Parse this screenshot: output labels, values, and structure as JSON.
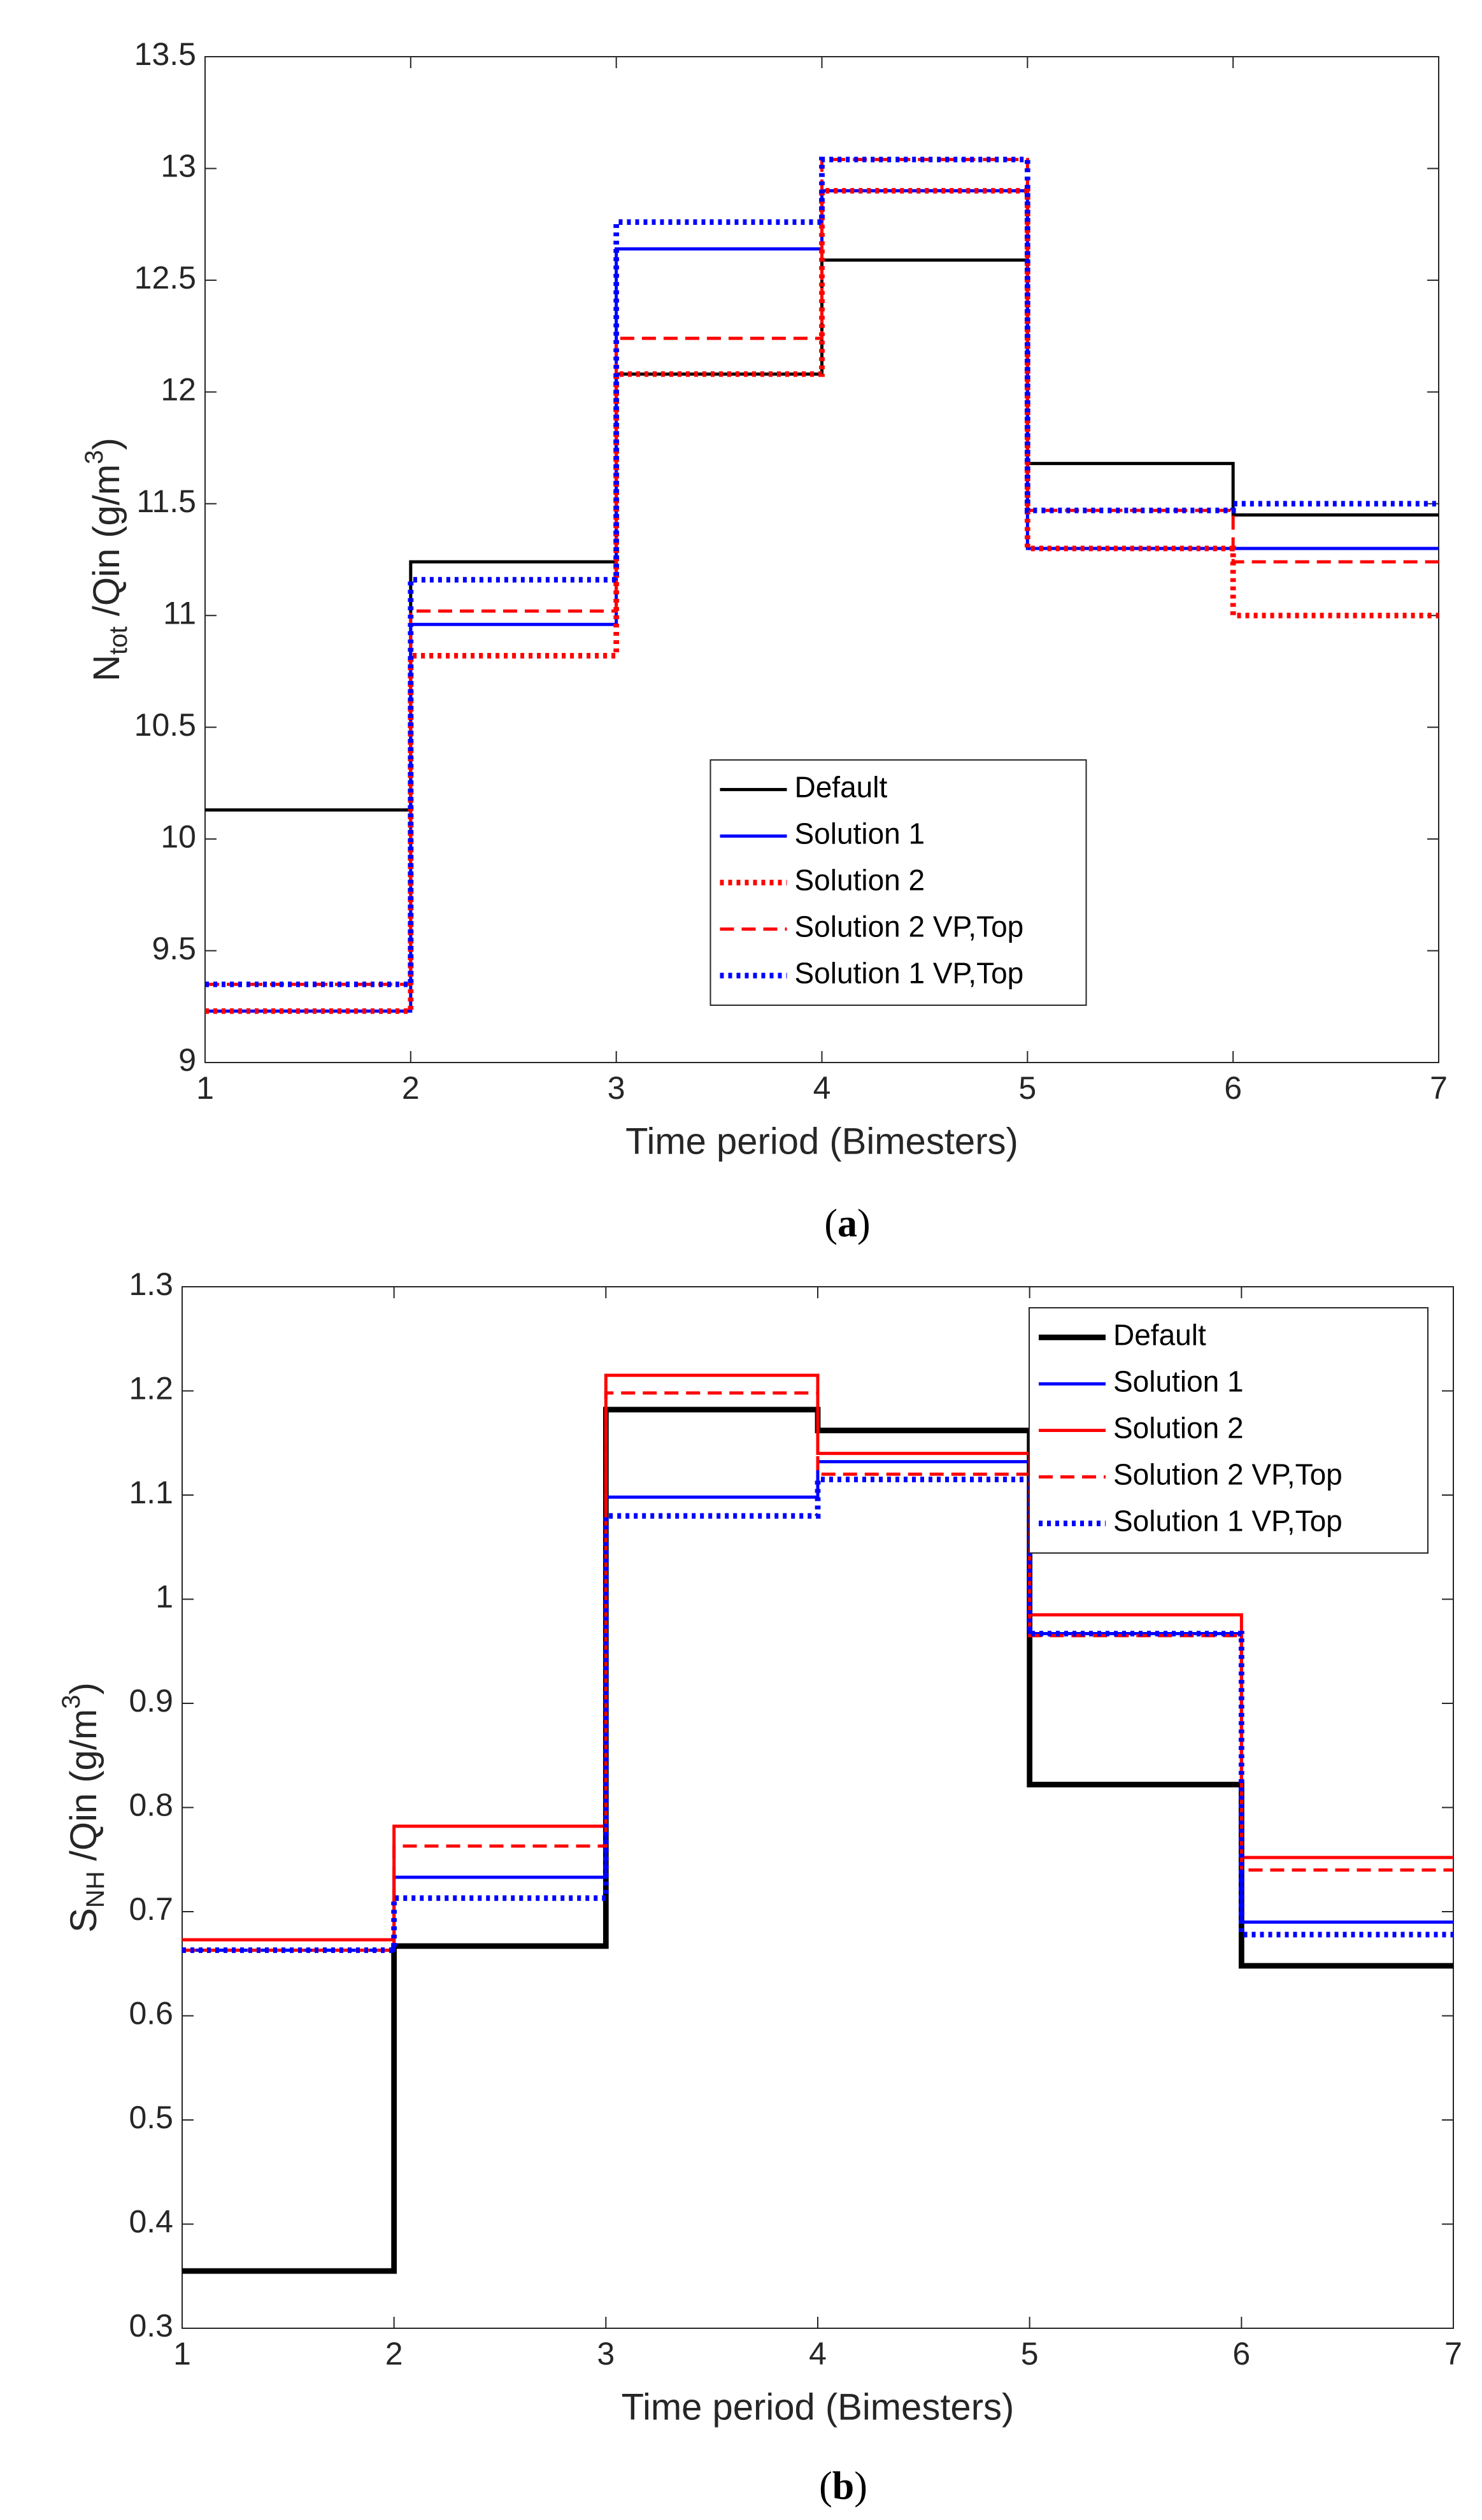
{
  "chart_data": [
    {
      "type": "stairs",
      "caption": "a",
      "ylabel": [
        {
          "text": "N"
        },
        {
          "text": "tot",
          "shift": "sub"
        },
        {
          "text": " /Qin (g/m"
        },
        {
          "text": "3",
          "shift": "sup"
        },
        {
          "text": ")"
        }
      ],
      "xlabel": "Time period (Bimesters)",
      "x": [
        1,
        2,
        3,
        4,
        5,
        6,
        7
      ],
      "xlim": [
        1,
        7
      ],
      "xticks": [
        1,
        2,
        3,
        4,
        5,
        6,
        7
      ],
      "ylim": [
        9,
        13.5
      ],
      "yticks": [
        9,
        9.5,
        10,
        10.5,
        11,
        11.5,
        12,
        12.5,
        13,
        13.5
      ],
      "legend": "south",
      "series": [
        {
          "name": "Default",
          "color": "#000000",
          "style": "solid",
          "width": 2,
          "values": [
            10.13,
            11.24,
            12.08,
            12.59,
            11.68,
            11.45,
            11.45
          ]
        },
        {
          "name": "Solution 1",
          "color": "#0000ff",
          "style": "solid",
          "width": 2,
          "values": [
            9.23,
            10.96,
            12.64,
            12.9,
            11.3,
            11.3,
            11.3
          ]
        },
        {
          "name": "Solution 2",
          "color": "#ff0000",
          "style": "dotted",
          "width": 3.5,
          "values": [
            9.23,
            10.82,
            12.08,
            12.9,
            11.3,
            11.0,
            11.0
          ]
        },
        {
          "name": "Solution 2 VP,Top",
          "color": "#ff0000",
          "style": "dashed",
          "width": 2,
          "values": [
            9.35,
            11.02,
            12.24,
            13.04,
            11.47,
            11.24,
            11.24
          ]
        },
        {
          "name": "Solution 1 VP,Top",
          "color": "#0000ff",
          "style": "dotted",
          "width": 3.5,
          "values": [
            9.35,
            11.16,
            12.76,
            13.04,
            11.47,
            11.5,
            11.5
          ]
        }
      ]
    },
    {
      "type": "stairs",
      "caption": "b",
      "ylabel": [
        {
          "text": "S"
        },
        {
          "text": "NH",
          "shift": "sub"
        },
        {
          "text": " /Qin (g/m"
        },
        {
          "text": "3",
          "shift": "sup"
        },
        {
          "text": ")"
        }
      ],
      "xlabel": "Time period (Bimesters)",
      "x": [
        1,
        2,
        3,
        4,
        5,
        6,
        7
      ],
      "xlim": [
        1,
        7
      ],
      "xticks": [
        1,
        2,
        3,
        4,
        5,
        6,
        7
      ],
      "ylim": [
        0.3,
        1.3
      ],
      "yticks": [
        0.3,
        0.4,
        0.5,
        0.6,
        0.7,
        0.8,
        0.9,
        1,
        1.1,
        1.2,
        1.3
      ],
      "legend": "northeast",
      "series": [
        {
          "name": "Default",
          "color": "#000000",
          "style": "solid",
          "width": 3.5,
          "values": [
            0.355,
            0.667,
            1.182,
            1.162,
            0.822,
            0.648,
            0.648
          ]
        },
        {
          "name": "Solution 1",
          "color": "#0000ff",
          "style": "solid",
          "width": 2,
          "values": [
            0.663,
            0.733,
            1.098,
            1.132,
            0.967,
            0.69,
            0.69
          ]
        },
        {
          "name": "Solution 2",
          "color": "#ff0000",
          "style": "solid",
          "width": 2,
          "values": [
            0.673,
            0.782,
            1.215,
            1.14,
            0.985,
            0.752,
            0.752
          ]
        },
        {
          "name": "Solution 2 VP,Top",
          "color": "#ff0000",
          "style": "dashed",
          "width": 2,
          "values": [
            0.663,
            0.763,
            1.198,
            1.12,
            0.965,
            0.74,
            0.74
          ]
        },
        {
          "name": "Solution 1 VP,Top",
          "color": "#0000ff",
          "style": "dotted",
          "width": 3.5,
          "values": [
            0.663,
            0.713,
            1.08,
            1.115,
            0.967,
            0.678,
            0.678
          ]
        }
      ]
    }
  ]
}
